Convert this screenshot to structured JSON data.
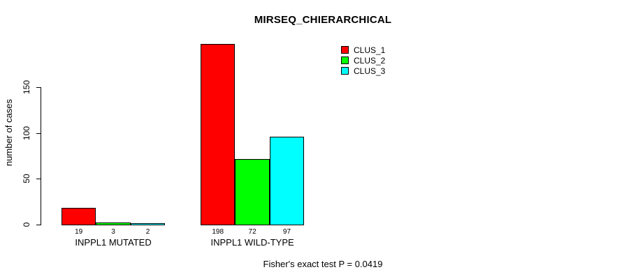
{
  "title": "MIRSEQ_CHIERARCHICAL",
  "footer": "Fisher's exact test P = 0.0419",
  "legend": {
    "items": [
      {
        "label": "CLUS_1",
        "color": "#FF0000"
      },
      {
        "label": "CLUS_2",
        "color": "#00FF00"
      },
      {
        "label": "CLUS_3",
        "color": "#00FFFF"
      }
    ]
  },
  "chart_data": {
    "type": "bar",
    "title": "MIRSEQ_CHIERARCHICAL",
    "categories": [
      "INPPL1 MUTATED",
      "INPPL1 WILD-TYPE"
    ],
    "series": [
      {
        "name": "CLUS_1",
        "color": "#FF0000",
        "values": [
          19,
          198
        ]
      },
      {
        "name": "CLUS_2",
        "color": "#00FF00",
        "values": [
          3,
          72
        ]
      },
      {
        "name": "CLUS_3",
        "color": "#00FFFF",
        "values": [
          2,
          97
        ]
      }
    ],
    "xlabel": "",
    "ylabel": "number of cases",
    "yticks": [
      0,
      50,
      100,
      150
    ],
    "ylim": [
      0,
      202
    ],
    "grid": false,
    "bar_value_labels": true,
    "legend_position": "top-right",
    "annotation": "Fisher's exact test P = 0.0419"
  }
}
